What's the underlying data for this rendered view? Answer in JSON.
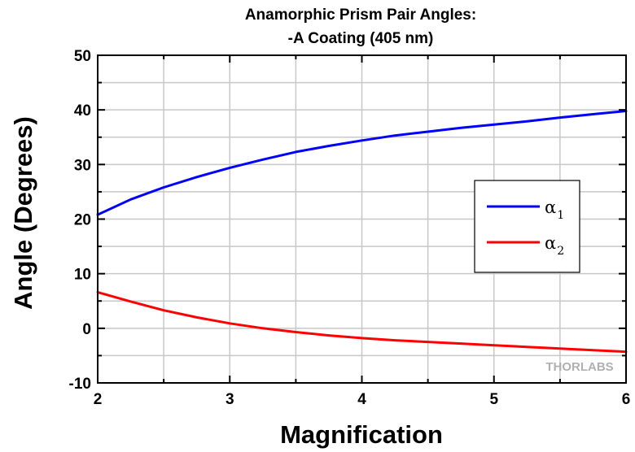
{
  "chart_data": {
    "type": "line",
    "title": "Anamorphic Prism Pair Angles:",
    "subtitle": "-A Coating (405 nm)",
    "xlabel": "Magnification",
    "ylabel": "Angle (Degrees)",
    "xlim": [
      2,
      6
    ],
    "ylim": [
      -10,
      50
    ],
    "xticks": [
      "2",
      "3",
      "4",
      "5",
      "6"
    ],
    "yticks": [
      "-10",
      "0",
      "10",
      "20",
      "30",
      "40",
      "50"
    ],
    "grid": true,
    "legend_position": "right-middle",
    "watermark": "THORLABS",
    "series": [
      {
        "name": "α1",
        "label_main": "α",
        "label_sub": "1",
        "color": "#0000ff",
        "x": [
          2.0,
          2.25,
          2.5,
          2.75,
          3.0,
          3.25,
          3.5,
          3.75,
          4.0,
          4.25,
          4.5,
          4.75,
          5.0,
          5.25,
          5.5,
          5.75,
          6.0
        ],
        "y": [
          20.8,
          23.6,
          25.8,
          27.7,
          29.4,
          30.9,
          32.3,
          33.4,
          34.4,
          35.3,
          36.0,
          36.7,
          37.3,
          37.9,
          38.6,
          39.2,
          39.8
        ]
      },
      {
        "name": "α2",
        "label_main": "α",
        "label_sub": "2",
        "color": "#ff0000",
        "x": [
          2.0,
          2.25,
          2.5,
          2.75,
          3.0,
          3.25,
          3.5,
          3.75,
          4.0,
          4.25,
          4.5,
          4.75,
          5.0,
          5.25,
          5.5,
          5.75,
          6.0
        ],
        "y": [
          6.6,
          4.9,
          3.3,
          2.0,
          0.9,
          0.0,
          -0.7,
          -1.3,
          -1.8,
          -2.2,
          -2.5,
          -2.8,
          -3.1,
          -3.4,
          -3.7,
          -4.0,
          -4.3
        ]
      }
    ]
  }
}
